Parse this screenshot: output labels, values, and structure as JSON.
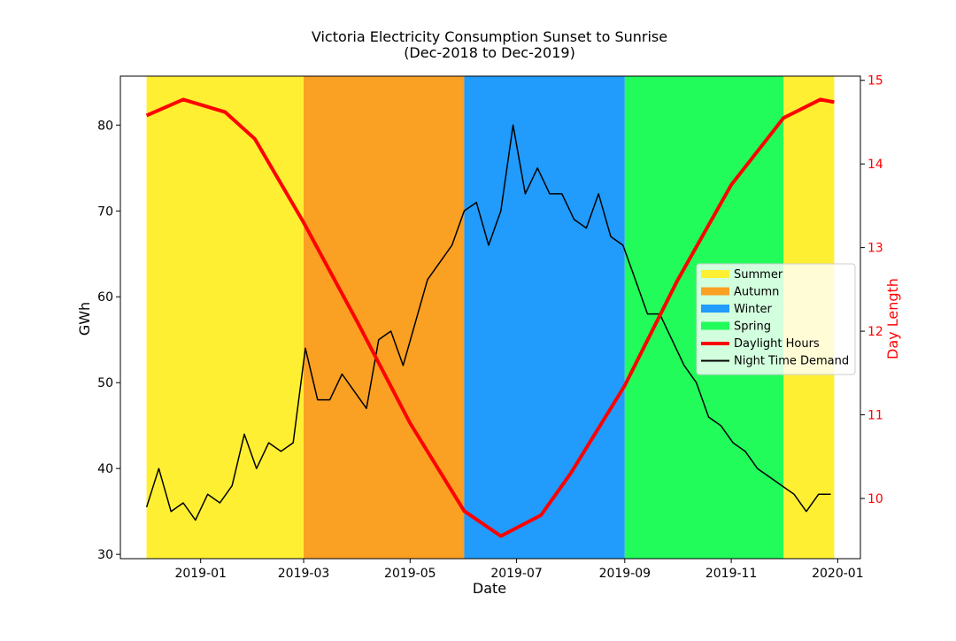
{
  "chart_data": {
    "type": "line",
    "title": "Victoria Electricity Consumption Sunset to Sunrise",
    "subtitle": "(Dec-2018 to Dec-2019)",
    "xlabel": "Date",
    "ylabel": "GWh",
    "y2label": "Day Length",
    "xlim": [
      "2018-11-16",
      "2020-01-14"
    ],
    "ylim": [
      29.5,
      85.7
    ],
    "y2lim": [
      9.28,
      15.05
    ],
    "x_ticks": [
      {
        "date": "2019-01-01",
        "label": "2019-01"
      },
      {
        "date": "2019-03-01",
        "label": "2019-03"
      },
      {
        "date": "2019-05-01",
        "label": "2019-05"
      },
      {
        "date": "2019-07-01",
        "label": "2019-07"
      },
      {
        "date": "2019-09-01",
        "label": "2019-09"
      },
      {
        "date": "2019-11-01",
        "label": "2019-11"
      },
      {
        "date": "2020-01-01",
        "label": "2020-01"
      }
    ],
    "y_ticks": [
      30,
      40,
      50,
      60,
      70,
      80
    ],
    "y2_ticks": [
      10,
      11,
      12,
      13,
      14,
      15
    ],
    "seasons": [
      {
        "name": "Summer",
        "start": "2018-12-01",
        "end": "2019-03-01",
        "color": "#FFEF33"
      },
      {
        "name": "Autumn",
        "start": "2019-03-01",
        "end": "2019-06-01",
        "color": "#FAA023"
      },
      {
        "name": "Winter",
        "start": "2019-06-01",
        "end": "2019-09-01",
        "color": "#219BFC"
      },
      {
        "name": "Spring",
        "start": "2019-09-01",
        "end": "2019-12-01",
        "color": "#21FC5A"
      },
      {
        "name": "Summer",
        "start": "2019-12-01",
        "end": "2019-12-30",
        "color": "#FFEF33"
      }
    ],
    "series": [
      {
        "name": "Night Time Demand",
        "axis": "left",
        "color": "#000000",
        "x": [
          "2018-12-01",
          "2018-12-08",
          "2018-12-15",
          "2018-12-22",
          "2018-12-29",
          "2019-01-05",
          "2019-01-12",
          "2019-01-19",
          "2019-01-26",
          "2019-02-02",
          "2019-02-09",
          "2019-02-16",
          "2019-02-23",
          "2019-03-02",
          "2019-03-09",
          "2019-03-16",
          "2019-03-23",
          "2019-03-30",
          "2019-04-06",
          "2019-04-13",
          "2019-04-20",
          "2019-04-27",
          "2019-05-04",
          "2019-05-11",
          "2019-05-18",
          "2019-05-25",
          "2019-06-01",
          "2019-06-08",
          "2019-06-15",
          "2019-06-22",
          "2019-06-29",
          "2019-07-06",
          "2019-07-13",
          "2019-07-20",
          "2019-07-27",
          "2019-08-03",
          "2019-08-10",
          "2019-08-17",
          "2019-08-24",
          "2019-08-31",
          "2019-09-07",
          "2019-09-14",
          "2019-09-21",
          "2019-09-28",
          "2019-10-05",
          "2019-10-12",
          "2019-10-19",
          "2019-10-26",
          "2019-11-02",
          "2019-11-09",
          "2019-11-16",
          "2019-11-23",
          "2019-11-30",
          "2019-12-07",
          "2019-12-14",
          "2019-12-21",
          "2019-12-28"
        ],
        "y": [
          35.5,
          40,
          35,
          36,
          34,
          37,
          36,
          38,
          44,
          40,
          43,
          42,
          43,
          54,
          48,
          48,
          51,
          49,
          47,
          55,
          56,
          52,
          57,
          62,
          64,
          66,
          70,
          71,
          66,
          70,
          80,
          72,
          75,
          72,
          72,
          69,
          68,
          72,
          67,
          66,
          62,
          58,
          58,
          55,
          52,
          50,
          46,
          45,
          43,
          42,
          40,
          39,
          38,
          37,
          35,
          37,
          37
        ]
      },
      {
        "name": "Daylight Hours",
        "axis": "right",
        "color": "#FF0000",
        "x": [
          "2018-12-01",
          "2018-12-22",
          "2019-01-15",
          "2019-02-01",
          "2019-03-01",
          "2019-04-01",
          "2019-05-01",
          "2019-06-01",
          "2019-06-22",
          "2019-07-15",
          "2019-08-01",
          "2019-09-01",
          "2019-10-01",
          "2019-11-01",
          "2019-12-01",
          "2019-12-22",
          "2019-12-30"
        ],
        "y": [
          14.58,
          14.77,
          14.62,
          14.3,
          13.3,
          12.1,
          10.9,
          9.85,
          9.55,
          9.8,
          10.3,
          11.35,
          12.6,
          13.75,
          14.55,
          14.77,
          14.74
        ]
      }
    ],
    "legend": {
      "position": "center-right",
      "entries": [
        {
          "label": "Summer",
          "color": "#FFEF33",
          "kind": "patch"
        },
        {
          "label": "Autumn",
          "color": "#FAA023",
          "kind": "patch"
        },
        {
          "label": "Winter",
          "color": "#219BFC",
          "kind": "patch"
        },
        {
          "label": "Spring",
          "color": "#21FC5A",
          "kind": "patch"
        },
        {
          "label": "Daylight Hours",
          "color": "#FF0000",
          "kind": "thick-line"
        },
        {
          "label": "Night Time Demand",
          "color": "#000000",
          "kind": "line"
        }
      ]
    },
    "grid": false
  }
}
